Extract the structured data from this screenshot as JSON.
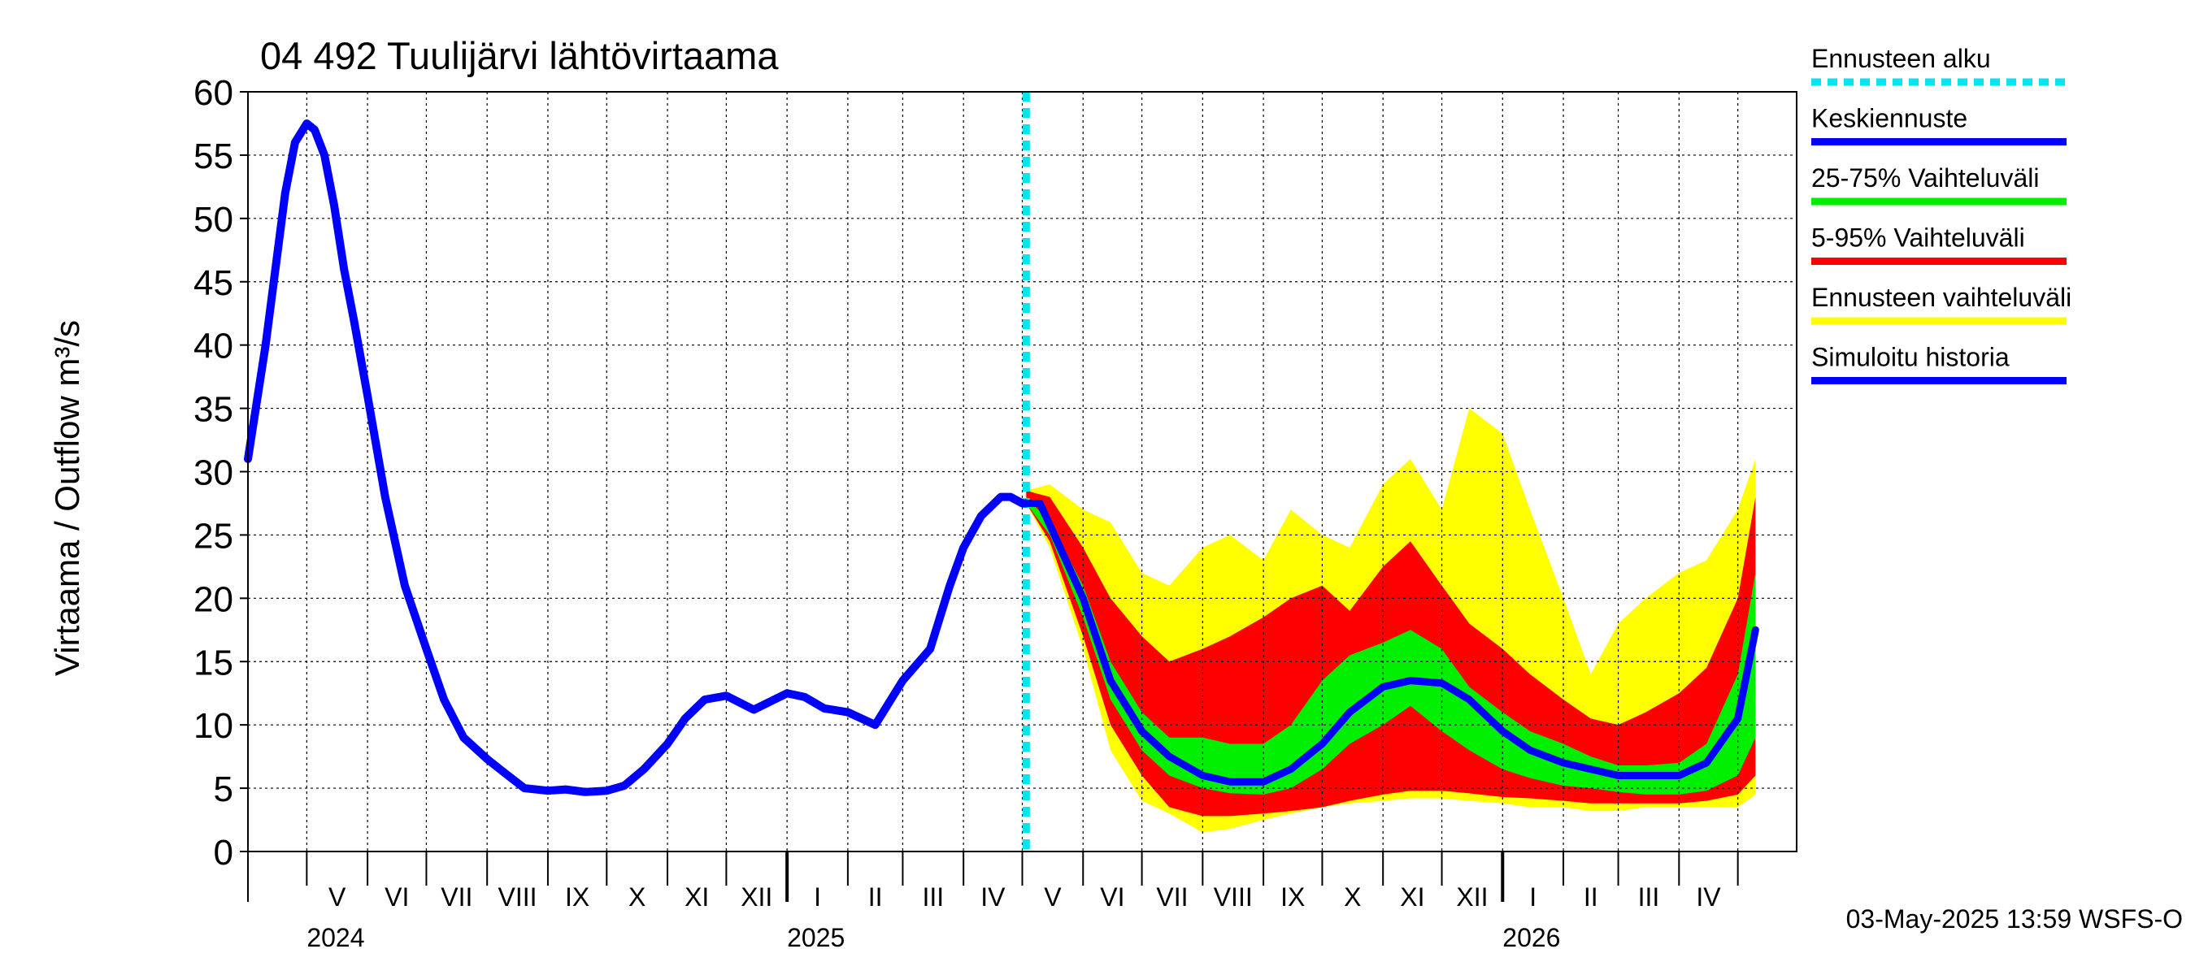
{
  "chart_data": {
    "type": "area",
    "title": "04 492 Tuulijärvi lähtövirtaama",
    "ylabel": "Virtaama / Outflow    m³/s",
    "ylim": [
      0,
      60
    ],
    "yticks": [
      "0",
      "5",
      "10",
      "15",
      "20",
      "25",
      "30",
      "35",
      "40",
      "45",
      "50",
      "55",
      "60"
    ],
    "xlim": [
      "2024-04-01",
      "2026-05-31"
    ],
    "grid": true,
    "legend_position": "right",
    "months": [
      {
        "label": "V",
        "start": "2024-05-01"
      },
      {
        "label": "VI",
        "start": "2024-06-01"
      },
      {
        "label": "VII",
        "start": "2024-07-01"
      },
      {
        "label": "VIII",
        "start": "2024-08-01"
      },
      {
        "label": "IX",
        "start": "2024-09-01"
      },
      {
        "label": "X",
        "start": "2024-10-01"
      },
      {
        "label": "XI",
        "start": "2024-11-01"
      },
      {
        "label": "XII",
        "start": "2024-12-01"
      },
      {
        "label": "I",
        "start": "2025-01-01"
      },
      {
        "label": "II",
        "start": "2025-02-01"
      },
      {
        "label": "III",
        "start": "2025-03-01"
      },
      {
        "label": "IV",
        "start": "2025-04-01"
      },
      {
        "label": "V",
        "start": "2025-05-01"
      },
      {
        "label": "VI",
        "start": "2025-06-01"
      },
      {
        "label": "VII",
        "start": "2025-07-01"
      },
      {
        "label": "VIII",
        "start": "2025-08-01"
      },
      {
        "label": "IX",
        "start": "2025-09-01"
      },
      {
        "label": "X",
        "start": "2025-10-01"
      },
      {
        "label": "XI",
        "start": "2025-11-01"
      },
      {
        "label": "XII",
        "start": "2025-12-01"
      },
      {
        "label": "I",
        "start": "2026-01-01"
      },
      {
        "label": "II",
        "start": "2026-02-01"
      },
      {
        "label": "III",
        "start": "2026-03-01"
      },
      {
        "label": "IV",
        "start": "2026-04-01"
      },
      {
        "label": "",
        "start": "2026-05-01"
      }
    ],
    "years": [
      {
        "label": "2024",
        "date": "2024-05-01"
      },
      {
        "label": "2025",
        "date": "2025-01-01"
      },
      {
        "label": "2026",
        "date": "2026-01-01"
      }
    ],
    "forecast_start": "2025-05-03",
    "colors": {
      "forecast_start": "#00e5ee",
      "median": "#0000ff",
      "band_25_75": "#00ee00",
      "band_5_95": "#ff0000",
      "band_full": "#ffff00",
      "history": "#0000ff"
    },
    "legend": [
      {
        "key": "forecast_start",
        "label": "Ennusteen alku",
        "style": "dashed"
      },
      {
        "key": "median",
        "label": "Keskiennuste",
        "style": "solid"
      },
      {
        "key": "band_25_75",
        "label": "25-75% Vaihteluväli",
        "style": "solid"
      },
      {
        "key": "band_5_95",
        "label": "5-95% Vaihteluväli",
        "style": "solid"
      },
      {
        "key": "band_full",
        "label": "Ennusteen vaihteluväli",
        "style": "solid"
      },
      {
        "key": "history",
        "label": "Simuloitu historia",
        "style": "solid"
      }
    ],
    "footer": "03-May-2025 13:59 WSFS-O",
    "series": [
      {
        "key": "history",
        "x": [
          "2024-04-01",
          "2024-04-10",
          "2024-04-20",
          "2024-04-25",
          "2024-05-01",
          "2024-05-05",
          "2024-05-10",
          "2024-05-15",
          "2024-05-20",
          "2024-05-25",
          "2024-06-01",
          "2024-06-10",
          "2024-06-20",
          "2024-07-01",
          "2024-07-10",
          "2024-07-20",
          "2024-08-01",
          "2024-08-10",
          "2024-08-20",
          "2024-09-01",
          "2024-09-10",
          "2024-09-20",
          "2024-10-01",
          "2024-10-10",
          "2024-10-20",
          "2024-11-01",
          "2024-11-10",
          "2024-11-20",
          "2024-12-01",
          "2024-12-15",
          "2025-01-01",
          "2025-01-10",
          "2025-01-20",
          "2025-02-01",
          "2025-02-15",
          "2025-03-01",
          "2025-03-15",
          "2025-03-25",
          "2025-04-01",
          "2025-04-10",
          "2025-04-20",
          "2025-04-25",
          "2025-05-01",
          "2025-05-03"
        ],
        "values": [
          31,
          40,
          52,
          56,
          57.5,
          57,
          55,
          51,
          46,
          42,
          36,
          28,
          21,
          16,
          12,
          9,
          7.3,
          6.2,
          5,
          4.8,
          4.9,
          4.7,
          4.8,
          5.2,
          6.5,
          8.5,
          10.5,
          12,
          12.3,
          11.2,
          12.5,
          12.2,
          11.3,
          11,
          10,
          13.5,
          16,
          21,
          24,
          26.5,
          28,
          28,
          27.5,
          27.5
        ]
      },
      {
        "key": "band_full",
        "x": [
          "2025-05-03",
          "2025-05-15",
          "2025-06-01",
          "2025-06-15",
          "2025-07-01",
          "2025-07-15",
          "2025-08-01",
          "2025-08-15",
          "2025-09-01",
          "2025-09-15",
          "2025-10-01",
          "2025-10-15",
          "2025-11-01",
          "2025-11-15",
          "2025-12-01",
          "2025-12-15",
          "2026-01-01",
          "2026-01-15",
          "2026-02-01",
          "2026-02-15",
          "2026-03-01",
          "2026-03-15",
          "2026-04-01",
          "2026-04-15",
          "2026-05-01",
          "2026-05-10"
        ],
        "upper": [
          28.5,
          29,
          27,
          26,
          22,
          21,
          24,
          25,
          23,
          27,
          25,
          24,
          29,
          31,
          27,
          35,
          33,
          27,
          20,
          14,
          18,
          20,
          22,
          23,
          27,
          31
        ],
        "lower": [
          27.5,
          24,
          16,
          8,
          4,
          3,
          1.5,
          1.8,
          2.5,
          3,
          3.5,
          3.8,
          4,
          4.2,
          4.2,
          4,
          3.8,
          3.5,
          3.5,
          3.2,
          3.2,
          3.5,
          3.5,
          3.5,
          3.5,
          4.5
        ]
      },
      {
        "key": "band_5_95",
        "x": [
          "2025-05-03",
          "2025-05-15",
          "2025-06-01",
          "2025-06-15",
          "2025-07-01",
          "2025-07-15",
          "2025-08-01",
          "2025-08-15",
          "2025-09-01",
          "2025-09-15",
          "2025-10-01",
          "2025-10-15",
          "2025-11-01",
          "2025-11-15",
          "2025-12-01",
          "2025-12-15",
          "2026-01-01",
          "2026-01-15",
          "2026-02-01",
          "2026-02-15",
          "2026-03-01",
          "2026-03-15",
          "2026-04-01",
          "2026-04-15",
          "2026-05-01",
          "2026-05-10"
        ],
        "upper": [
          28.5,
          28,
          24,
          20,
          17,
          15,
          16,
          17,
          18.5,
          20,
          21,
          19,
          22.5,
          24.5,
          21,
          18,
          16,
          14,
          12,
          10.5,
          10,
          11,
          12.5,
          14.5,
          20,
          28
        ],
        "lower": [
          27.5,
          24.5,
          17,
          10,
          6,
          3.5,
          2.8,
          2.8,
          3,
          3.2,
          3.5,
          4,
          4.5,
          4.8,
          4.8,
          4.6,
          4.3,
          4.2,
          4,
          3.8,
          3.8,
          3.8,
          3.8,
          4,
          4.5,
          6
        ]
      },
      {
        "key": "band_25_75",
        "x": [
          "2025-05-03",
          "2025-05-15",
          "2025-06-01",
          "2025-06-15",
          "2025-07-01",
          "2025-07-15",
          "2025-08-01",
          "2025-08-15",
          "2025-09-01",
          "2025-09-15",
          "2025-10-01",
          "2025-10-15",
          "2025-11-01",
          "2025-11-15",
          "2025-12-01",
          "2025-12-15",
          "2026-01-01",
          "2026-01-15",
          "2026-02-01",
          "2026-02-15",
          "2026-03-01",
          "2026-03-15",
          "2026-04-01",
          "2026-04-15",
          "2026-05-01",
          "2026-05-10"
        ],
        "upper": [
          28,
          26,
          21,
          15,
          11,
          9,
          9,
          8.5,
          8.5,
          10,
          13.5,
          15.5,
          16.5,
          17.5,
          16,
          13,
          11,
          9.5,
          8.5,
          7.5,
          6.8,
          6.8,
          7,
          8.5,
          14,
          22
        ],
        "lower": [
          27.5,
          25,
          18.5,
          12,
          8,
          6,
          5,
          4.6,
          4.5,
          5,
          6.5,
          8.5,
          10,
          11.5,
          9.5,
          8,
          6.5,
          5.8,
          5.2,
          5,
          4.7,
          4.5,
          4.5,
          4.8,
          6,
          9
        ]
      },
      {
        "key": "median",
        "x": [
          "2025-05-03",
          "2025-05-10",
          "2025-06-01",
          "2025-06-15",
          "2025-07-01",
          "2025-07-15",
          "2025-08-01",
          "2025-08-15",
          "2025-09-01",
          "2025-09-15",
          "2025-10-01",
          "2025-10-15",
          "2025-11-01",
          "2025-11-15",
          "2025-12-01",
          "2025-12-15",
          "2026-01-01",
          "2026-01-15",
          "2026-02-01",
          "2026-02-15",
          "2026-03-01",
          "2026-03-15",
          "2026-04-01",
          "2026-04-15",
          "2026-05-01",
          "2026-05-10"
        ],
        "values": [
          27.5,
          27.5,
          20,
          13.5,
          9.5,
          7.5,
          6,
          5.5,
          5.5,
          6.5,
          8.5,
          11,
          13,
          13.5,
          13.3,
          12,
          9.5,
          8,
          7,
          6.5,
          6,
          6,
          6,
          7,
          10.5,
          17.5
        ]
      }
    ]
  }
}
